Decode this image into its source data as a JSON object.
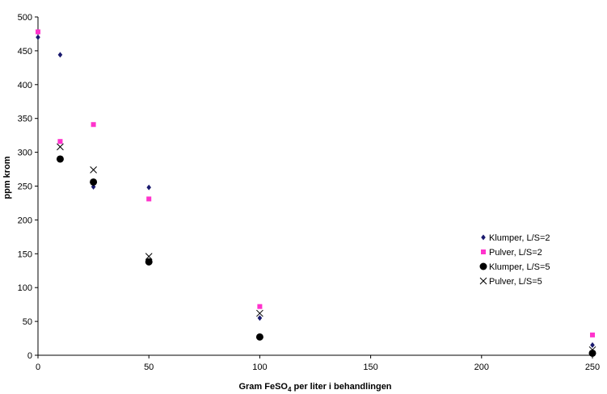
{
  "chart_data": {
    "type": "scatter",
    "xlabel_parts": [
      "Gram FeSO",
      "4",
      " per liter i behandlingen"
    ],
    "ylabel": "ppm krom",
    "xlim": [
      0,
      250
    ],
    "ylim": [
      0,
      500
    ],
    "xticks": [
      0,
      50,
      100,
      150,
      200,
      250
    ],
    "yticks": [
      0,
      50,
      100,
      150,
      200,
      250,
      300,
      350,
      400,
      450,
      500
    ],
    "grid": false,
    "legend_position": "right",
    "series": [
      {
        "name": "Klumper, L/S=2",
        "marker": "diamond",
        "color": "#1a1a6e",
        "points": [
          [
            0,
            470
          ],
          [
            10,
            444
          ],
          [
            25,
            249
          ],
          [
            50,
            248
          ],
          [
            100,
            55
          ],
          [
            250,
            15
          ]
        ]
      },
      {
        "name": "Pulver, L/S=2",
        "marker": "square",
        "color": "#ff33cc",
        "points": [
          [
            0,
            478
          ],
          [
            10,
            316
          ],
          [
            25,
            341
          ],
          [
            50,
            231
          ],
          [
            100,
            72
          ],
          [
            250,
            30
          ]
        ]
      },
      {
        "name": "Klumper, L/S=5",
        "marker": "circle",
        "color": "#000000",
        "points": [
          [
            10,
            290
          ],
          [
            25,
            256
          ],
          [
            50,
            138
          ],
          [
            100,
            27
          ],
          [
            250,
            3
          ]
        ]
      },
      {
        "name": "Pulver, L/S=5",
        "marker": "x",
        "color": "#000000",
        "points": [
          [
            10,
            308
          ],
          [
            25,
            274
          ],
          [
            50,
            146
          ],
          [
            100,
            62
          ],
          [
            250,
            8
          ]
        ]
      }
    ]
  }
}
